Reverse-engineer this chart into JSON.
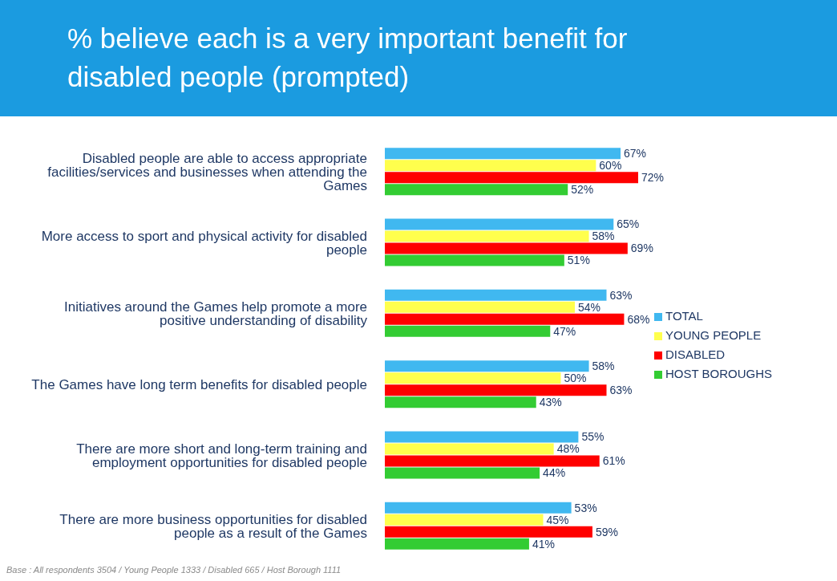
{
  "chart_data": {
    "type": "bar",
    "orientation": "horizontal",
    "title": "% believe each is a very important benefit for disabled people (prompted)",
    "categories": [
      "Disabled people are able to access appropriate facilities/services and businesses when attending the Games",
      "More access to sport and physical activity for disabled people",
      "Initiatives around the Games help promote a more positive understanding of disability",
      "The Games have long term benefits for disabled people",
      "There are more short and long-term training and employment opportunities for disabled people",
      "There are more business opportunities for disabled people as a result of the Games"
    ],
    "series": [
      {
        "name": "TOTAL",
        "color": "#40b8f0",
        "values": [
          67,
          65,
          63,
          58,
          55,
          53
        ],
        "value_labels": [
          "67%",
          "65%",
          "63%",
          "58%",
          "55%",
          "53%"
        ]
      },
      {
        "name": "YOUNG PEOPLE",
        "color": "#ffff4d",
        "values": [
          60,
          58,
          54,
          50,
          48,
          45
        ],
        "value_labels": [
          "60%",
          "58%",
          "54%",
          "50%",
          "48%",
          "45%"
        ]
      },
      {
        "name": "DISABLED",
        "color": "#ff0000",
        "values": [
          72,
          69,
          68,
          63,
          61,
          59
        ],
        "value_labels": [
          "72%",
          "69%",
          "68%",
          "63%",
          "61%",
          "59%"
        ]
      },
      {
        "name": "HOST BOROUGHS",
        "color": "#33cc33",
        "values": [
          52,
          51,
          47,
          43,
          44,
          41
        ],
        "value_labels": [
          "52%",
          "51%",
          "47%",
          "43%",
          "44%",
          "41%"
        ]
      }
    ],
    "legend": "right",
    "grid": false,
    "annotations": [
      "Base : All respondents 3504 / Young People 1333 / Disabled 665 / Host Borough 1111"
    ]
  }
}
